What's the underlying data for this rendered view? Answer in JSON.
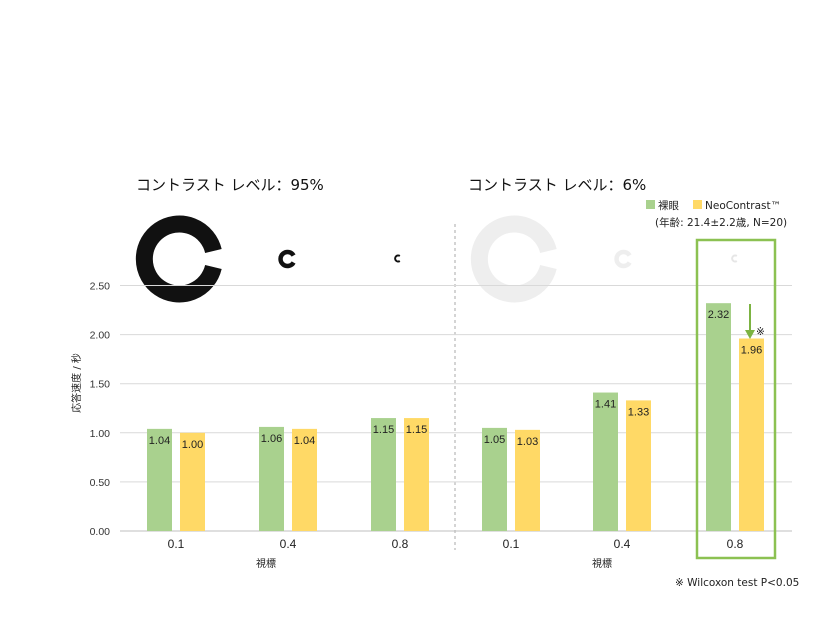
{
  "chart_data": {
    "type": "bar",
    "panels": [
      {
        "title": "コントラスト レベル：95%",
        "categories": [
          "0.1",
          "0.4",
          "0.8"
        ]
      },
      {
        "title": "コントラスト レベル：6%",
        "categories": [
          "0.1",
          "0.4",
          "0.8"
        ]
      }
    ],
    "categories": [
      "0.1",
      "0.4",
      "0.8",
      "0.1",
      "0.4",
      "0.8"
    ],
    "series": [
      {
        "name": "裸眼",
        "color": "#a9d18e",
        "values": [
          1.04,
          1.06,
          1.15,
          1.05,
          1.41,
          2.32
        ]
      },
      {
        "name": "NeoContrast™",
        "color": "#ffd966",
        "values": [
          1.0,
          1.04,
          1.15,
          1.03,
          1.33,
          1.96
        ]
      }
    ],
    "value_labels": [
      [
        "1.04",
        "1.06",
        "1.15",
        "1.05",
        "1.41",
        "2.32"
      ],
      [
        "1.00",
        "1.04",
        "1.15",
        "1.03",
        "1.33",
        "1.96"
      ]
    ],
    "ylabel": "応答速度 / 秒",
    "xlabel": "視標",
    "ylim": [
      0,
      2.5
    ],
    "yticks": [
      "0.00",
      "0.50",
      "1.00",
      "1.50",
      "2.00",
      "2.50"
    ],
    "grid": true,
    "legend_position": "top-right",
    "legend_note": "(年齢: 21.4±2.2歳, N=20)",
    "significance_mark": "※",
    "footnote": "※ Wilcoxon test P<0.05",
    "highlight_color": "#8cc152",
    "optotype_colors": {
      "high_contrast": "#111111",
      "low_contrast": "#eeeeee"
    }
  }
}
